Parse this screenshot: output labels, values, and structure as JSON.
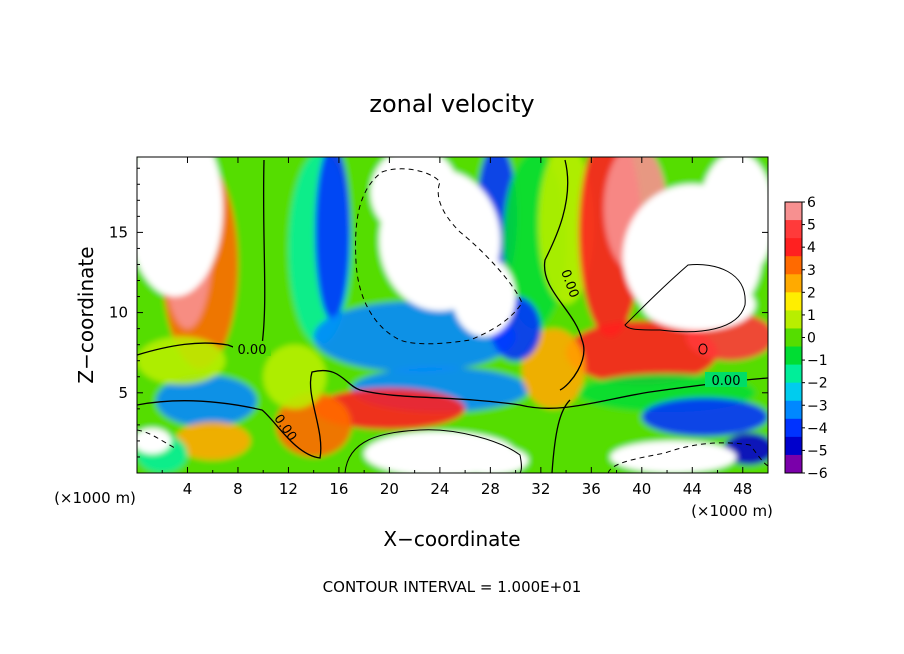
{
  "chart_data": {
    "type": "heatmap",
    "title": "zonal velocity",
    "xlabel": "X−coordinate",
    "ylabel": "Z−coordinate",
    "x_unit_left": "(×1000 m)",
    "x_unit_right": "(×1000 m)",
    "footer": "CONTOUR INTERVAL = 1.000E+01",
    "xlim": [
      0,
      50
    ],
    "ylim": [
      0,
      19.7
    ],
    "x_ticks": [
      4,
      8,
      12,
      16,
      20,
      24,
      28,
      32,
      36,
      40,
      44,
      48
    ],
    "y_ticks": [
      5,
      10,
      15
    ],
    "colorbar": {
      "levels": [
        -6,
        -5,
        -4,
        -3,
        -2,
        -1,
        0,
        1,
        2,
        3,
        4,
        5,
        6
      ],
      "labels": [
        "6",
        "5",
        "4",
        "3",
        "2",
        "1",
        "0",
        "−1",
        "−2",
        "−3",
        "−4",
        "−5",
        "−6"
      ],
      "colors": [
        "#f79090",
        "#ff3a3a",
        "#ff2020",
        "#ff6a00",
        "#ffaa00",
        "#ffee00",
        "#b8ee00",
        "#55dd00",
        "#00dd33",
        "#00ee99",
        "#00ccee",
        "#0088ff",
        "#0033ff",
        "#0000cc",
        "#7a00aa"
      ]
    },
    "contour_labels": [
      "0.00",
      "0.00",
      "0.00",
      "0.00"
    ],
    "field_blobs": [
      {
        "x": 9.5,
        "z": 14.5,
        "rx": 4.5,
        "rz": 9.0,
        "v": 0.0
      },
      {
        "x": 5.0,
        "z": 13.0,
        "rx": 3.0,
        "rz": 6.5,
        "v": 3.5
      },
      {
        "x": 4.0,
        "z": 14.5,
        "rx": 2.0,
        "rz": 5.5,
        "v": 6.5
      },
      {
        "x": 14.5,
        "z": 14.0,
        "rx": 2.5,
        "rz": 6.0,
        "v": -2.0
      },
      {
        "x": 15.5,
        "z": 15.0,
        "rx": 1.4,
        "rz": 5.5,
        "v": -4.5
      },
      {
        "x": 22.0,
        "z": 8.5,
        "rx": 8.0,
        "rz": 2.2,
        "v": -3.5
      },
      {
        "x": 28.5,
        "z": 16.0,
        "rx": 1.6,
        "rz": 4.5,
        "v": -4.5
      },
      {
        "x": 31.5,
        "z": 14.5,
        "rx": 2.5,
        "rz": 5.5,
        "v": -1.0
      },
      {
        "x": 34.0,
        "z": 15.5,
        "rx": 2.2,
        "rz": 5.0,
        "v": 1.0
      },
      {
        "x": 37.5,
        "z": 15.0,
        "rx": 2.5,
        "rz": 6.5,
        "v": 4.5
      },
      {
        "x": 39.5,
        "z": 16.5,
        "rx": 2.5,
        "rz": 4.0,
        "v": 6.5
      },
      {
        "x": 40.0,
        "z": 7.5,
        "rx": 6.0,
        "rz": 2.0,
        "v": 4.0
      },
      {
        "x": 47.0,
        "z": 8.5,
        "rx": 3.5,
        "rz": 1.5,
        "v": 5.5
      },
      {
        "x": 24.0,
        "z": 5.2,
        "rx": 7.0,
        "rz": 1.4,
        "v": -3.5
      },
      {
        "x": 20.0,
        "z": 4.0,
        "rx": 6.0,
        "rz": 1.3,
        "v": 4.5
      },
      {
        "x": 14.0,
        "z": 3.0,
        "rx": 3.0,
        "rz": 2.0,
        "v": 3.5
      },
      {
        "x": 5.5,
        "z": 4.5,
        "rx": 4.0,
        "rz": 1.6,
        "v": -3.5
      },
      {
        "x": 6.0,
        "z": 2.0,
        "rx": 3.0,
        "rz": 1.2,
        "v": 2.5
      },
      {
        "x": 3.5,
        "z": 7.0,
        "rx": 3.5,
        "rz": 1.5,
        "v": 1.0
      },
      {
        "x": 12.5,
        "z": 6.0,
        "rx": 2.5,
        "rz": 2.0,
        "v": 0.5
      },
      {
        "x": 33.0,
        "z": 6.5,
        "rx": 2.5,
        "rz": 2.5,
        "v": 2.5
      },
      {
        "x": 30.0,
        "z": 9.0,
        "rx": 2.0,
        "rz": 2.0,
        "v": -4.0
      },
      {
        "x": 42.0,
        "z": 5.0,
        "rx": 7.0,
        "rz": 1.2,
        "v": -1.0
      },
      {
        "x": 45.0,
        "z": 3.5,
        "rx": 5.0,
        "rz": 1.2,
        "v": -4.0
      },
      {
        "x": 48.5,
        "z": 1.5,
        "rx": 2.0,
        "rz": 1.0,
        "v": -5.5
      },
      {
        "x": 2.0,
        "z": 1.2,
        "rx": 2.0,
        "rz": 1.2,
        "v": -1.5
      }
    ],
    "blank_regions": [
      {
        "x": 3.0,
        "z": 16.5,
        "rx": 3.8,
        "rz": 5.5
      },
      {
        "x": 24.0,
        "z": 14.5,
        "rx": 4.8,
        "rz": 4.4
      },
      {
        "x": 22.0,
        "z": 17.5,
        "rx": 3.5,
        "rz": 2.8
      },
      {
        "x": 27.5,
        "z": 11.0,
        "rx": 2.5,
        "rz": 2.5
      },
      {
        "x": 44.0,
        "z": 13.5,
        "rx": 5.5,
        "rz": 4.5
      },
      {
        "x": 47.5,
        "z": 16.0,
        "rx": 3.0,
        "rz": 4.0
      },
      {
        "x": 44.5,
        "z": 10.5,
        "rx": 4.5,
        "rz": 1.6
      },
      {
        "x": 24.0,
        "z": 1.2,
        "rx": 6.0,
        "rz": 1.4
      },
      {
        "x": 28.0,
        "z": 0.8,
        "rx": 3.0,
        "rz": 0.9
      },
      {
        "x": 42.5,
        "z": 1.0,
        "rx": 5.0,
        "rz": 1.0
      },
      {
        "x": 1.2,
        "z": 2.0,
        "rx": 1.5,
        "rz": 0.8
      }
    ]
  }
}
